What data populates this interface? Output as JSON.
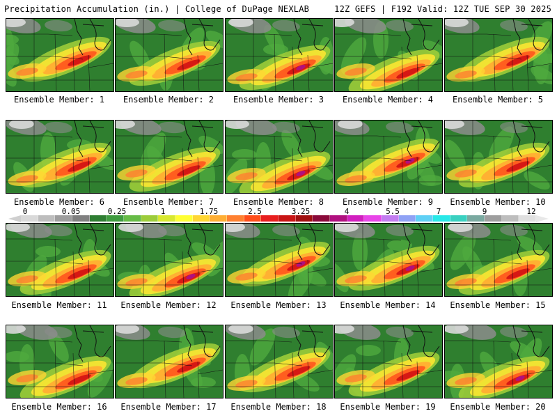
{
  "header": {
    "left_title": "Precipitation Accumulation (in.) | College of DuPage NEXLAB",
    "right_title": "12Z GEFS | F192 Valid: 12Z TUE SEP 30 2025"
  },
  "caption_prefix": "Ensemble Member:",
  "members": [
    {
      "label": "Ensemble Member: 1"
    },
    {
      "label": "Ensemble Member: 2"
    },
    {
      "label": "Ensemble Member: 3"
    },
    {
      "label": "Ensemble Member: 4"
    },
    {
      "label": "Ensemble Member: 5"
    },
    {
      "label": "Ensemble Member: 6"
    },
    {
      "label": "Ensemble Member: 7"
    },
    {
      "label": "Ensemble Member: 8"
    },
    {
      "label": "Ensemble Member: 9"
    },
    {
      "label": "Ensemble Member: 10"
    },
    {
      "label": "Ensemble Member: 11"
    },
    {
      "label": "Ensemble Member: 12"
    },
    {
      "label": "Ensemble Member: 13"
    },
    {
      "label": "Ensemble Member: 14"
    },
    {
      "label": "Ensemble Member: 15"
    },
    {
      "label": "Ensemble Member: 16"
    },
    {
      "label": "Ensemble Member: 17"
    },
    {
      "label": "Ensemble Member: 18"
    },
    {
      "label": "Ensemble Member: 19"
    },
    {
      "label": "Ensemble Member: 20"
    }
  ],
  "legend": {
    "labels": [
      "0",
      "0.05",
      "0.25",
      "1",
      "1.75",
      "2.5",
      "3.25",
      "4",
      "5.5",
      "7",
      "9",
      "12"
    ],
    "colors": [
      "#d9d9d9",
      "#bdbdbd",
      "#9e9e9e",
      "#808080",
      "#2e7d32",
      "#3f9b3f",
      "#66bb46",
      "#9ccc3a",
      "#d8e830",
      "#ffff33",
      "#ffd633",
      "#ffae33",
      "#ff8030",
      "#ff4d1a",
      "#e81e1e",
      "#c81414",
      "#a00f0f",
      "#8a0a3a",
      "#b0107f",
      "#d11fbf",
      "#e845e8",
      "#c27cf0",
      "#8fa2f5",
      "#5fd0f5",
      "#28e8e8",
      "#3ad0c0",
      "#7aa9a0",
      "#9e9e9e",
      "#bdbdbd",
      "#e0e0e0"
    ]
  }
}
